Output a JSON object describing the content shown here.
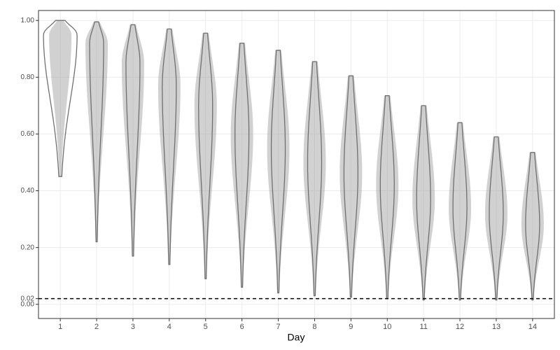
{
  "chart_data": {
    "type": "violin",
    "x_label": "Day",
    "categories": [
      "1",
      "2",
      "3",
      "4",
      "5",
      "6",
      "7",
      "8",
      "9",
      "10",
      "11",
      "12",
      "13",
      "14"
    ],
    "min": [
      0.45,
      0.22,
      0.17,
      0.14,
      0.09,
      0.06,
      0.04,
      0.03,
      0.025,
      0.02,
      0.015,
      0.015,
      0.015,
      0.015
    ],
    "peak": [
      0.95,
      0.92,
      0.85,
      0.77,
      0.7,
      0.6,
      0.55,
      0.5,
      0.46,
      0.42,
      0.37,
      0.34,
      0.32,
      0.28
    ],
    "max": [
      1.0,
      0.995,
      0.985,
      0.97,
      0.955,
      0.92,
      0.895,
      0.855,
      0.805,
      0.735,
      0.7,
      0.64,
      0.59,
      0.535
    ],
    "color": "#707070",
    "point_color": "#9a9a9a",
    "ylim": [
      -0.05,
      1.035
    ],
    "yticks": [
      {
        "value": 0,
        "label": "0.00"
      },
      {
        "value": 0.02,
        "label": "0.02"
      },
      {
        "value": 0.2,
        "label": "0.20"
      },
      {
        "value": 0.4,
        "label": "0.40"
      },
      {
        "value": 0.6,
        "label": "0.60"
      },
      {
        "value": 0.8,
        "label": "0.80"
      },
      {
        "value": 1,
        "label": "1.00"
      }
    ],
    "hline": 0.02,
    "grid": true
  }
}
